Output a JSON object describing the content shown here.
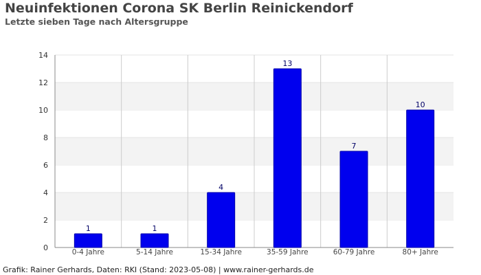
{
  "title": "Neuinfektionen Corona SK Berlin Reinickendorf",
  "subtitle": "Letzte sieben Tage nach Altersgruppe",
  "footer": "Grafik: Rainer Gerhards, Daten: RKI (Stand: 2023-05-08) | www.rainer-gerhards.de",
  "colors": {
    "bar": "#0000ee",
    "bar_border": "#0000aa",
    "label": "#000066",
    "band": "#f3f3f3",
    "grid": "#cccccc"
  },
  "chart_data": {
    "type": "bar",
    "title": "Neuinfektionen Corona SK Berlin Reinickendorf",
    "subtitle": "Letzte sieben Tage nach Altersgruppe",
    "categories": [
      "0-4 Jahre",
      "5-14 Jahre",
      "15-34 Jahre",
      "35-59 Jahre",
      "60-79 Jahre",
      "80+ Jahre"
    ],
    "values": [
      1,
      1,
      4,
      13,
      7,
      10
    ],
    "data_labels": [
      "1",
      "1",
      "4",
      "13",
      "7",
      "10"
    ],
    "ylim": [
      0,
      14
    ],
    "yticks": [
      0,
      2,
      4,
      6,
      8,
      10,
      12,
      14
    ],
    "grid": true
  }
}
